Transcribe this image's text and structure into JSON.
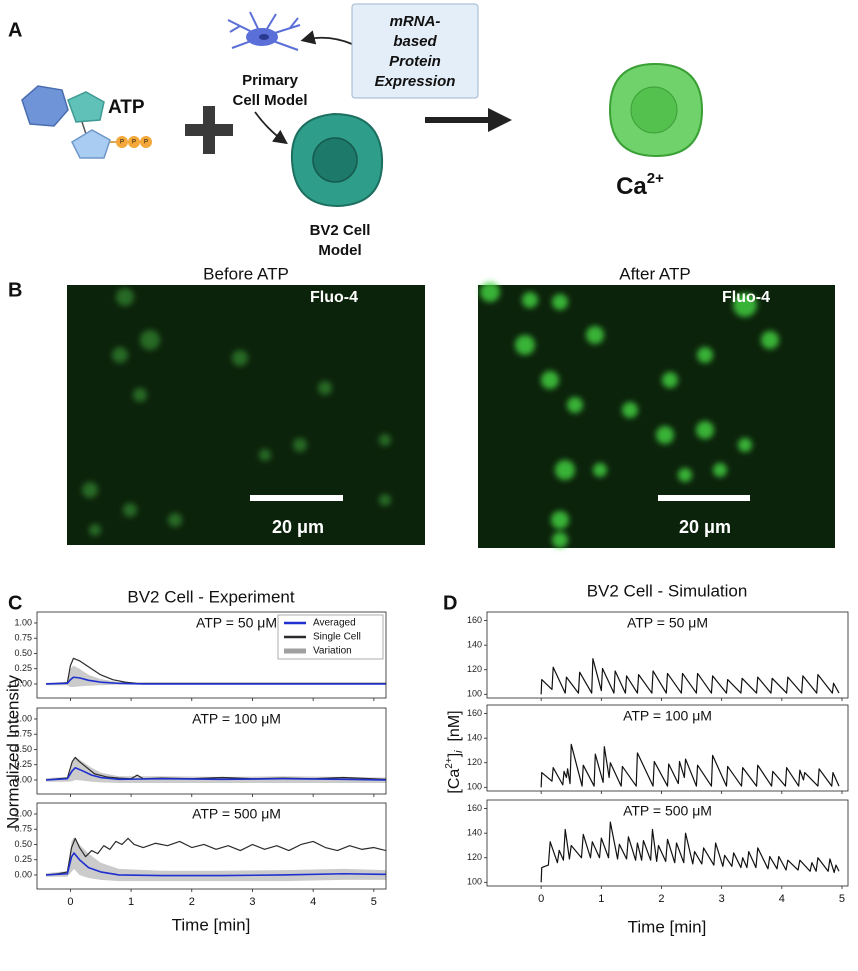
{
  "panel_a": {
    "label": "A",
    "atp": "ATP",
    "phosphate": [
      "P",
      "P",
      "P"
    ],
    "primary_cell": [
      "Primary",
      "Cell Model"
    ],
    "mrna": [
      "mRNA-",
      "based",
      "Protein",
      "Expression"
    ],
    "bv2_cell": [
      "BV2 Cell",
      "Model"
    ],
    "calcium": {
      "base": "Ca",
      "superscript": "2+"
    }
  },
  "panel_b": {
    "label": "B",
    "images": [
      {
        "title": "Before ATP",
        "stain": "Fluo-4",
        "scale_bar": "20 μm"
      },
      {
        "title": "After ATP",
        "stain": "Fluo-4",
        "scale_bar": "20 μm"
      }
    ]
  },
  "chart_data": [
    {
      "type": "line",
      "panel_label": "C",
      "title": "BV2 Cell - Experiment",
      "xlabel": "Time  [min]",
      "ylabel": "Normalized Intensity",
      "xlim": [
        -0.55,
        5.2
      ],
      "xticks": [
        0,
        1,
        2,
        3,
        4,
        5
      ],
      "legend": [
        {
          "name": "Averaged",
          "color": "#1f2fd0"
        },
        {
          "name": "Single Cell",
          "color": "#2b2b2b"
        },
        {
          "name": "Variation",
          "color": "#a0a0a0"
        }
      ],
      "subplots": [
        {
          "annotation": "ATP = 50 μM",
          "ylim": [
            -0.23,
            1.18
          ],
          "yticks": [
            {
              "value": 0,
              "label": "0.00"
            },
            {
              "value": 0.25,
              "label": "0.25"
            },
            {
              "value": 0.5,
              "label": "0.50"
            },
            {
              "value": 0.75,
              "label": "0.75"
            },
            {
              "value": 1,
              "label": "1.00"
            }
          ],
          "series": [
            {
              "x": [
                -0.4,
                -0.05,
                0,
                0.05,
                0.15,
                0.3,
                0.5,
                0.8,
                1.2,
                5.2
              ],
              "values": [
                0,
                0.01,
                0.07,
                0.11,
                0.1,
                0.06,
                0.03,
                0.01,
                0,
                0
              ]
            },
            {
              "x": [
                -0.4,
                -0.2,
                -0.05,
                0,
                0.05,
                0.15,
                0.3,
                0.5,
                0.7,
                0.9,
                1.1,
                1.5,
                2,
                3,
                4,
                5.2
              ],
              "values": [
                0,
                0.01,
                0.02,
                0.3,
                0.42,
                0.38,
                0.28,
                0.15,
                0.07,
                0.03,
                0.01,
                0.01,
                0.01,
                0.01,
                0.01,
                0.01
              ]
            },
            {
              "x": [
                -0.4,
                -0.05,
                0,
                0.05,
                0.15,
                0.3,
                0.5,
                0.8,
                1.2,
                5.2
              ],
              "upper": [
                0.02,
                0.03,
                0.25,
                0.3,
                0.25,
                0.15,
                0.08,
                0.03,
                0.01,
                0.01
              ],
              "lower": [
                -0.02,
                -0.02,
                -0.05,
                -0.05,
                -0.04,
                -0.03,
                -0.02,
                -0.01,
                -0.01,
                -0.01
              ]
            }
          ]
        },
        {
          "annotation": "ATP = 100 μM",
          "ylim": [
            -0.23,
            1.18
          ],
          "yticks": [
            {
              "value": 0,
              "label": "0.00"
            },
            {
              "value": 0.25,
              "label": "0.25"
            },
            {
              "value": 0.5,
              "label": "0.50"
            },
            {
              "value": 0.75,
              "label": "0.75"
            },
            {
              "value": 1,
              "label": "1.00"
            }
          ],
          "series": [
            {
              "x": [
                -0.4,
                -0.05,
                0.03,
                0.08,
                0.2,
                0.35,
                0.5,
                0.8,
                1.5,
                2.5,
                3.5,
                4.5,
                5.2
              ],
              "values": [
                0,
                0.02,
                0.15,
                0.2,
                0.15,
                0.08,
                0.04,
                0.01,
                0.02,
                0.01,
                0.02,
                0.01,
                0
              ]
            },
            {
              "x": [
                -0.4,
                -0.2,
                -0.05,
                0.03,
                0.08,
                0.15,
                0.25,
                0.4,
                0.6,
                0.8,
                1.0,
                1.1,
                1.2,
                1.5,
                2,
                2.5,
                3,
                3.5,
                4,
                4.5,
                5.2
              ],
              "values": [
                0,
                0.02,
                0.03,
                0.3,
                0.37,
                0.3,
                0.22,
                0.1,
                0.05,
                0.03,
                0.02,
                0.08,
                0.02,
                0.03,
                0.02,
                0.04,
                0.02,
                0.03,
                0.02,
                0.04,
                0.01
              ]
            },
            {
              "x": [
                -0.4,
                -0.05,
                0.03,
                0.08,
                0.2,
                0.35,
                0.5,
                0.8,
                1.5,
                2.5,
                3.5,
                4.5,
                5.2
              ],
              "upper": [
                0.03,
                0.05,
                0.3,
                0.38,
                0.3,
                0.2,
                0.12,
                0.06,
                0.06,
                0.05,
                0.06,
                0.05,
                0.04
              ],
              "lower": [
                -0.03,
                -0.03,
                -0.02,
                0,
                -0.01,
                -0.03,
                -0.04,
                -0.05,
                -0.05,
                -0.05,
                -0.05,
                -0.05,
                -0.05
              ]
            }
          ]
        },
        {
          "annotation": "ATP = 500 μM",
          "ylim": [
            -0.23,
            1.18
          ],
          "yticks": [
            {
              "value": 0,
              "label": "0.00"
            },
            {
              "value": 0.25,
              "label": "0.25"
            },
            {
              "value": 0.5,
              "label": "0.50"
            },
            {
              "value": 0.75,
              "label": "0.75"
            },
            {
              "value": 1,
              "label": "1.00"
            }
          ],
          "series": [
            {
              "x": [
                -0.4,
                -0.05,
                0.02,
                0.06,
                0.15,
                0.3,
                0.5,
                0.8,
                1.5,
                2.5,
                3.5,
                4.5,
                5.2
              ],
              "values": [
                0,
                0.02,
                0.3,
                0.36,
                0.25,
                0.12,
                0.05,
                0,
                -0.01,
                -0.01,
                0,
                0.02,
                0.01
              ]
            },
            {
              "x": [
                -0.4,
                -0.2,
                -0.05,
                0.02,
                0.08,
                0.15,
                0.25,
                0.35,
                0.45,
                0.55,
                0.65,
                0.75,
                0.85,
                0.95,
                1.05,
                1.2,
                1.4,
                1.6,
                1.8,
                2.0,
                2.2,
                2.4,
                2.6,
                2.8,
                3.0,
                3.2,
                3.4,
                3.6,
                3.8,
                4.0,
                4.2,
                4.4,
                4.6,
                4.8,
                5.0,
                5.2
              ],
              "values": [
                0,
                0.02,
                0.05,
                0.45,
                0.6,
                0.45,
                0.3,
                0.4,
                0.35,
                0.48,
                0.42,
                0.55,
                0.5,
                0.6,
                0.5,
                0.45,
                0.52,
                0.48,
                0.55,
                0.45,
                0.5,
                0.42,
                0.48,
                0.4,
                0.5,
                0.42,
                0.48,
                0.4,
                0.5,
                0.55,
                0.45,
                0.4,
                0.48,
                0.42,
                0.45,
                0.4
              ]
            },
            {
              "x": [
                -0.4,
                -0.05,
                0.02,
                0.06,
                0.15,
                0.3,
                0.5,
                0.8,
                1.5,
                2.5,
                3.5,
                4.5,
                5.2
              ],
              "upper": [
                0.03,
                0.06,
                0.55,
                0.62,
                0.5,
                0.35,
                0.2,
                0.1,
                0.07,
                0.07,
                0.08,
                0.1,
                0.08
              ],
              "lower": [
                -0.03,
                -0.03,
                0.05,
                0.1,
                0,
                -0.05,
                -0.08,
                -0.1,
                -0.1,
                -0.1,
                -0.1,
                -0.08,
                -0.08
              ]
            }
          ]
        }
      ]
    },
    {
      "type": "line",
      "panel_label": "D",
      "title": "BV2 Cell - Simulation",
      "xlabel": "Time  [min]",
      "ylabel": [
        "[Ca",
        "2+",
        "]",
        "i",
        "  [nM]"
      ],
      "color": "#111111",
      "xlim": [
        -0.9,
        5.1
      ],
      "xticks": [
        0,
        1,
        2,
        3,
        4,
        5
      ],
      "subplots": [
        {
          "annotation": "ATP = 50 μM",
          "ylim": [
            97,
            167
          ],
          "yticks": [
            100,
            120,
            140,
            160
          ],
          "series": [
            {
              "x": [
                0,
                0.01,
                0.18,
                0.2,
                0.4,
                0.42,
                0.62,
                0.64,
                0.84,
                0.86,
                1.0,
                1.02,
                1.21,
                1.23,
                1.4,
                1.42,
                1.6,
                1.62,
                1.84,
                1.86,
                2.08,
                2.1,
                2.33,
                2.35,
                2.58,
                2.6,
                2.83,
                2.85,
                3.08,
                3.1,
                3.32,
                3.34,
                3.58,
                3.6,
                3.82,
                3.84,
                4.08,
                4.1,
                4.33,
                4.35,
                4.58,
                4.6,
                4.84,
                4.86,
                4.95
              ],
              "values": [
                100,
                112,
                104,
                122,
                101,
                114,
                101,
                118,
                101,
                129,
                103,
                121,
                101,
                119,
                101,
                115,
                101,
                116,
                101,
                119,
                101,
                117,
                101,
                117,
                101,
                117,
                101,
                115,
                101,
                112,
                101,
                113,
                101,
                114,
                101,
                113,
                101,
                114,
                101,
                115,
                101,
                116,
                101,
                109,
                101
              ]
            }
          ]
        },
        {
          "annotation": "ATP = 100 μM",
          "ylim": [
            97,
            167
          ],
          "yticks": [
            100,
            120,
            140,
            160
          ],
          "series": [
            {
              "x": [
                0,
                0.01,
                0.18,
                0.2,
                0.36,
                0.38,
                0.42,
                0.44,
                0.48,
                0.5,
                0.68,
                0.7,
                0.88,
                0.9,
                1.03,
                1.05,
                1.13,
                1.15,
                1.33,
                1.35,
                1.58,
                1.6,
                1.86,
                1.88,
                2.1,
                2.12,
                2.28,
                2.3,
                2.38,
                2.4,
                2.58,
                2.6,
                2.83,
                2.85,
                3.08,
                3.1,
                3.33,
                3.35,
                3.58,
                3.6,
                3.83,
                3.85,
                4.06,
                4.08,
                4.28,
                4.3,
                4.36,
                4.38,
                4.6,
                4.62,
                4.83,
                4.85,
                4.95
              ],
              "values": [
                100,
                112,
                105,
                116,
                102,
                113,
                108,
                115,
                103,
                135,
                101,
                118,
                101,
                127,
                104,
                133,
                108,
                120,
                101,
                117,
                101,
                128,
                101,
                121,
                101,
                119,
                103,
                121,
                108,
                123,
                101,
                118,
                101,
                126,
                101,
                117,
                101,
                116,
                101,
                118,
                101,
                113,
                101,
                116,
                101,
                114,
                106,
                112,
                101,
                115,
                101,
                112,
                101
              ]
            }
          ]
        },
        {
          "annotation": "ATP = 500 μM",
          "ylim": [
            97,
            167
          ],
          "yticks": [
            100,
            120,
            140,
            160
          ],
          "series": [
            {
              "x": [
                0,
                0.01,
                0.12,
                0.15,
                0.27,
                0.3,
                0.37,
                0.4,
                0.47,
                0.5,
                0.67,
                0.7,
                0.82,
                0.85,
                0.97,
                1.0,
                1.12,
                1.15,
                1.27,
                1.3,
                1.42,
                1.45,
                1.57,
                1.6,
                1.67,
                1.7,
                1.82,
                1.85,
                1.92,
                1.95,
                2.07,
                2.1,
                2.22,
                2.25,
                2.37,
                2.4,
                2.52,
                2.55,
                2.67,
                2.7,
                2.87,
                2.9,
                3.02,
                3.05,
                3.17,
                3.2,
                3.32,
                3.35,
                3.42,
                3.45,
                3.57,
                3.6,
                3.77,
                3.8,
                3.92,
                3.95,
                4.07,
                4.1,
                4.27,
                4.3,
                4.47,
                4.5,
                4.57,
                4.6,
                4.77,
                4.8,
                4.87,
                4.9,
                4.95
              ],
              "values": [
                100,
                112,
                114,
                133,
                116,
                126,
                118,
                143,
                119,
                130,
                120,
                139,
                120,
                133,
                120,
                136,
                120,
                149,
                119,
                131,
                119,
                137,
                118,
                132,
                118,
                134,
                118,
                143,
                117,
                130,
                117,
                135,
                116,
                132,
                116,
                140,
                115,
                125,
                115,
                128,
                114,
                132,
                113,
                122,
                113,
                124,
                112,
                120,
                112,
                125,
                112,
                128,
                111,
                121,
                111,
                121,
                110,
                118,
                110,
                118,
                109,
                116,
                109,
                120,
                109,
                119,
                108,
                114,
                109
              ]
            }
          ]
        }
      ]
    }
  ]
}
